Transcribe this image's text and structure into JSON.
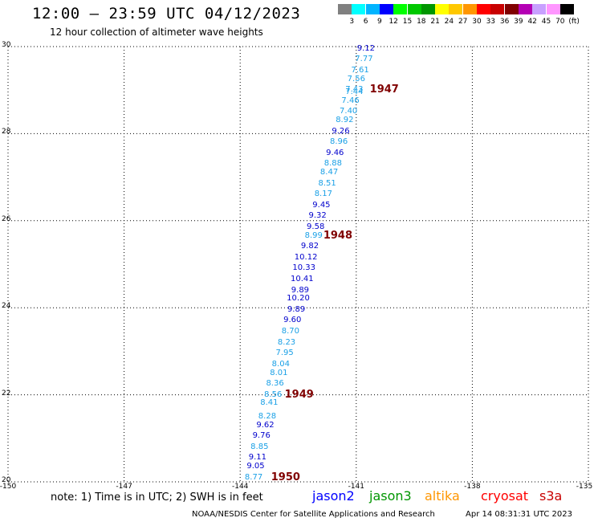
{
  "title": "12:00 – 23:59 UTC 04/12/2023",
  "subtitle": "12 hour collection of altimeter wave heights",
  "colorbar": {
    "colors": [
      "#808080",
      "#00ffff",
      "#00b4ff",
      "#0000ff",
      "#00ff00",
      "#00c800",
      "#009600",
      "#ffff00",
      "#ffc800",
      "#ff9600",
      "#ff0000",
      "#c80000",
      "#800000",
      "#b400b4",
      "#c8a0ff",
      "#ff96ff",
      "#000000"
    ],
    "labels": [
      "3",
      "6",
      "9",
      "12",
      "15",
      "18",
      "21",
      "24",
      "27",
      "30",
      "33",
      "36",
      "39",
      "42",
      "45",
      "70",
      "(ft)"
    ]
  },
  "map": {
    "lon_range": [
      -150,
      -135
    ],
    "lat_range": [
      20,
      30
    ],
    "x_ticks": [
      "-150",
      "-147",
      "-144",
      "-141",
      "-138",
      "-135"
    ],
    "y_ticks": [
      "30",
      "28",
      "26",
      "24",
      "22",
      "20"
    ],
    "observations": [
      {
        "lon": -140.75,
        "lat": 29.95,
        "swh": "9.12",
        "color": "#0000cc"
      },
      {
        "lon": -140.8,
        "lat": 29.7,
        "swh": "7.77",
        "color": "#1aa0e6"
      },
      {
        "lon": -140.9,
        "lat": 29.45,
        "swh": "7.61",
        "color": "#1aa0e6"
      },
      {
        "lon": -141.0,
        "lat": 29.25,
        "swh": "7.56",
        "color": "#1aa0e6"
      },
      {
        "lon": -141.05,
        "lat": 29.0,
        "swh": "7.43",
        "color": "#1aa0e6"
      },
      {
        "lon": -141.05,
        "lat": 28.95,
        "swh": "7.44",
        "color": "#1aa0e6"
      },
      {
        "lon": -141.15,
        "lat": 28.75,
        "swh": "7.46",
        "color": "#1aa0e6"
      },
      {
        "lon": -141.2,
        "lat": 28.5,
        "swh": "7.40",
        "color": "#1aa0e6"
      },
      {
        "lon": -141.3,
        "lat": 28.3,
        "swh": "8.92",
        "color": "#1aa0e6"
      },
      {
        "lon": -141.4,
        "lat": 28.05,
        "swh": "9.26",
        "color": "#0000cc"
      },
      {
        "lon": -141.45,
        "lat": 27.8,
        "swh": "8.96",
        "color": "#1aa0e6"
      },
      {
        "lon": -141.55,
        "lat": 27.55,
        "swh": "9.46",
        "color": "#0000cc"
      },
      {
        "lon": -141.6,
        "lat": 27.3,
        "swh": "8.88",
        "color": "#1aa0e6"
      },
      {
        "lon": -141.7,
        "lat": 27.1,
        "swh": "8.47",
        "color": "#1aa0e6"
      },
      {
        "lon": -141.75,
        "lat": 26.85,
        "swh": "8.51",
        "color": "#1aa0e6"
      },
      {
        "lon": -141.85,
        "lat": 26.6,
        "swh": "8.17",
        "color": "#1aa0e6"
      },
      {
        "lon": -141.9,
        "lat": 26.35,
        "swh": "9.45",
        "color": "#0000cc"
      },
      {
        "lon": -142.0,
        "lat": 26.1,
        "swh": "9.32",
        "color": "#0000cc"
      },
      {
        "lon": -142.05,
        "lat": 25.85,
        "swh": "9.58",
        "color": "#0000cc"
      },
      {
        "lon": -142.1,
        "lat": 25.65,
        "swh": "8.99",
        "color": "#1aa0e6"
      },
      {
        "lon": -142.2,
        "lat": 25.4,
        "swh": "9.82",
        "color": "#0000cc"
      },
      {
        "lon": -142.3,
        "lat": 25.15,
        "swh": "10.12",
        "color": "#0000cc"
      },
      {
        "lon": -142.35,
        "lat": 24.9,
        "swh": "10.33",
        "color": "#0000cc"
      },
      {
        "lon": -142.4,
        "lat": 24.65,
        "swh": "10.41",
        "color": "#0000cc"
      },
      {
        "lon": -142.45,
        "lat": 24.4,
        "swh": "9.89",
        "color": "#0000cc"
      },
      {
        "lon": -142.5,
        "lat": 24.2,
        "swh": "10.20",
        "color": "#0000cc"
      },
      {
        "lon": -142.55,
        "lat": 23.95,
        "swh": "9.89",
        "color": "#0000cc"
      },
      {
        "lon": -142.65,
        "lat": 23.7,
        "swh": "9.60",
        "color": "#0000cc"
      },
      {
        "lon": -142.7,
        "lat": 23.45,
        "swh": "8.70",
        "color": "#1aa0e6"
      },
      {
        "lon": -142.8,
        "lat": 23.2,
        "swh": "8.23",
        "color": "#1aa0e6"
      },
      {
        "lon": -142.85,
        "lat": 22.95,
        "swh": "7.95",
        "color": "#1aa0e6"
      },
      {
        "lon": -142.95,
        "lat": 22.7,
        "swh": "8.04",
        "color": "#1aa0e6"
      },
      {
        "lon": -143.0,
        "lat": 22.5,
        "swh": "8.01",
        "color": "#1aa0e6"
      },
      {
        "lon": -143.1,
        "lat": 22.25,
        "swh": "8.36",
        "color": "#1aa0e6"
      },
      {
        "lon": -143.15,
        "lat": 22.0,
        "swh": "8.56",
        "color": "#1aa0e6"
      },
      {
        "lon": -143.25,
        "lat": 21.8,
        "swh": "8.41",
        "color": "#1aa0e6"
      },
      {
        "lon": -143.3,
        "lat": 21.5,
        "swh": "8.28",
        "color": "#1aa0e6"
      },
      {
        "lon": -143.35,
        "lat": 21.3,
        "swh": "9.62",
        "color": "#0000cc"
      },
      {
        "lon": -143.45,
        "lat": 21.05,
        "swh": "9.76",
        "color": "#0000cc"
      },
      {
        "lon": -143.5,
        "lat": 20.8,
        "swh": "8.85",
        "color": "#1aa0e6"
      },
      {
        "lon": -143.55,
        "lat": 20.55,
        "swh": "9.11",
        "color": "#0000cc"
      },
      {
        "lon": -143.6,
        "lat": 20.35,
        "swh": "9.05",
        "color": "#0000cc"
      },
      {
        "lon": -143.65,
        "lat": 20.1,
        "swh": "8.77",
        "color": "#1aa0e6"
      }
    ],
    "pass_labels": [
      {
        "lon": -140.65,
        "lat": 29.0,
        "text": "1947"
      },
      {
        "lon": -141.85,
        "lat": 25.65,
        "text": "1948"
      },
      {
        "lon": -142.85,
        "lat": 22.0,
        "text": "1949"
      },
      {
        "lon": -143.2,
        "lat": 20.1,
        "text": "1950"
      }
    ]
  },
  "note": "note:  1) Time is in UTC;  2) SWH is in feet",
  "satellites": [
    {
      "name": "jason2",
      "color": "#0000ff"
    },
    {
      "name": "jason3",
      "color": "#009600"
    },
    {
      "name": "altika",
      "color": "#ff9600"
    },
    {
      "name": "cryosat",
      "color": "#ff0000"
    },
    {
      "name": "s3a",
      "color": "#c80000"
    }
  ],
  "footer": {
    "agency": "NOAA/NESDIS Center for Satellite Applications and Research",
    "timestamp": "Apr 14 08:31:31 UTC 2023"
  }
}
